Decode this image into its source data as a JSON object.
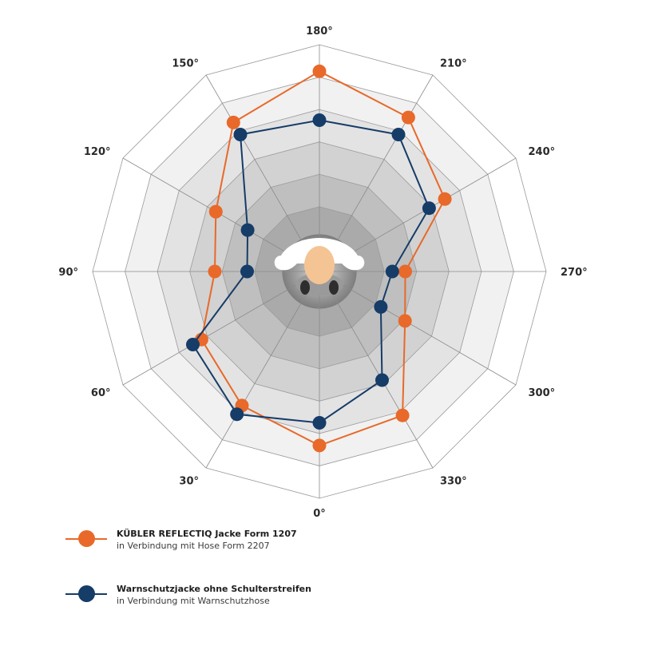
{
  "chart_data": {
    "type": "radar",
    "angles": [
      "180°",
      "210°",
      "240°",
      "270°",
      "300°",
      "330°",
      "0°",
      "30°",
      "60°",
      "90°",
      "120°",
      "150°"
    ],
    "rings": 7,
    "series": [
      {
        "name_bold": "KÜBLER REFLECTIQ Jacke Form 1207",
        "name_sub": "in Verbindung mit Hose Form 2207",
        "color": "#e8692a",
        "values": [
          6.18,
          5.49,
          4.47,
          2.65,
          3.05,
          5.13,
          5.37,
          4.78,
          4.2,
          3.23,
          3.69,
          5.31
        ]
      },
      {
        "name_bold": "Warnschutzjacke ohne Schulterstreifen",
        "name_sub": "in Verbindung mit Warnschutzhose",
        "color": "#163c68",
        "values": [
          4.67,
          4.88,
          3.91,
          2.25,
          2.19,
          3.87,
          4.67,
          5.09,
          4.51,
          2.23,
          2.56,
          4.88
        ]
      }
    ]
  }
}
